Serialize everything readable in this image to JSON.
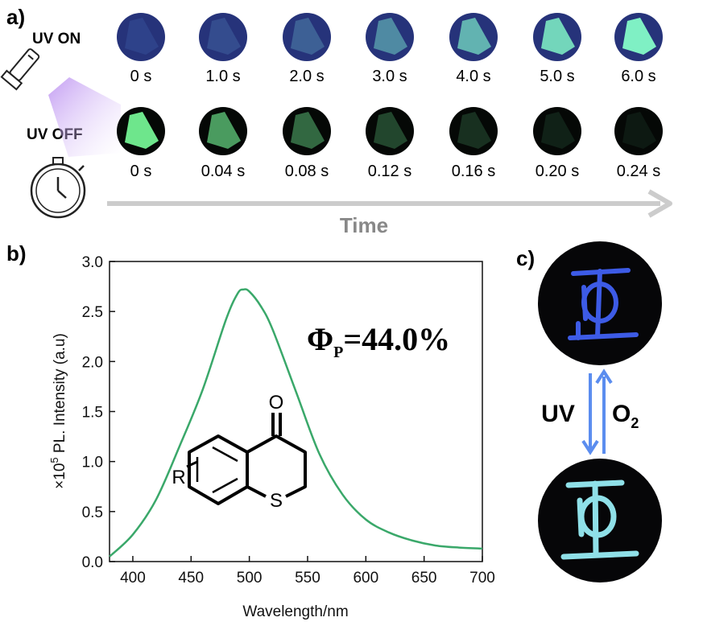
{
  "panel_a": {
    "label": "a)",
    "uv_on_label": "UV ON",
    "uv_off_label": "UV OFF",
    "uv_on_times": [
      "0 s",
      "1.0 s",
      "2.0 s",
      "3.0 s",
      "4.0 s",
      "5.0 s",
      "6.0 s"
    ],
    "uv_off_times": [
      "0 s",
      "0.04 s",
      "0.08 s",
      "0.12 s",
      "0.16 s",
      "0.20 s",
      "0.24 s"
    ],
    "uv_on_glow": [
      0.05,
      0.15,
      0.3,
      0.55,
      0.75,
      0.9,
      1.0
    ],
    "uv_off_glow": [
      1.0,
      0.75,
      0.55,
      0.38,
      0.25,
      0.14,
      0.07
    ],
    "time_arrow_label": "Time",
    "icons": [
      "flashlight-icon",
      "stopwatch-icon"
    ]
  },
  "panel_b": {
    "label": "b)",
    "quantum_yield_symbol": "Φ",
    "quantum_yield_subscript": "P",
    "quantum_yield_value": "=44.0%",
    "structure_labels": {
      "carbonyl_o": "O",
      "sulfur": "S",
      "substituent": "R"
    }
  },
  "panel_c": {
    "label": "c)",
    "uv_label": "UV",
    "o2_label": "O",
    "o2_subscript": "2"
  },
  "colors": {
    "curve": "#3aa86a",
    "uv_on_bg": "#26337a",
    "uv_glow": "#7ff0c4",
    "arrow": "#5b8def",
    "time_arrow": "#cccccc",
    "time_text": "#888888"
  },
  "chart_data": {
    "type": "line",
    "xlabel": "Wavelength/nm",
    "ylabel_prefix": "×10",
    "ylabel_exponent": "5",
    "ylabel_suffix": " PL. Intensity (a.u)",
    "xlim": [
      380,
      700
    ],
    "ylim": [
      0,
      3.0
    ],
    "xticks": [
      400,
      450,
      500,
      550,
      600,
      650,
      700
    ],
    "yticks": [
      0.0,
      0.5,
      1.0,
      1.5,
      2.0,
      2.5,
      3.0
    ],
    "ytick_labels": [
      "0.0",
      "0.5",
      "1.0",
      "1.5",
      "2.0",
      "2.5",
      "3.0"
    ],
    "series": [
      {
        "x": [
          380,
          400,
          420,
          440,
          460,
          480,
          490,
          495,
          500,
          510,
          520,
          540,
          560,
          580,
          600,
          620,
          640,
          660,
          680,
          700
        ],
        "values": [
          0.05,
          0.27,
          0.62,
          1.15,
          1.72,
          2.42,
          2.68,
          2.72,
          2.7,
          2.55,
          2.32,
          1.7,
          1.08,
          0.67,
          0.42,
          0.29,
          0.21,
          0.16,
          0.14,
          0.13
        ]
      }
    ]
  }
}
